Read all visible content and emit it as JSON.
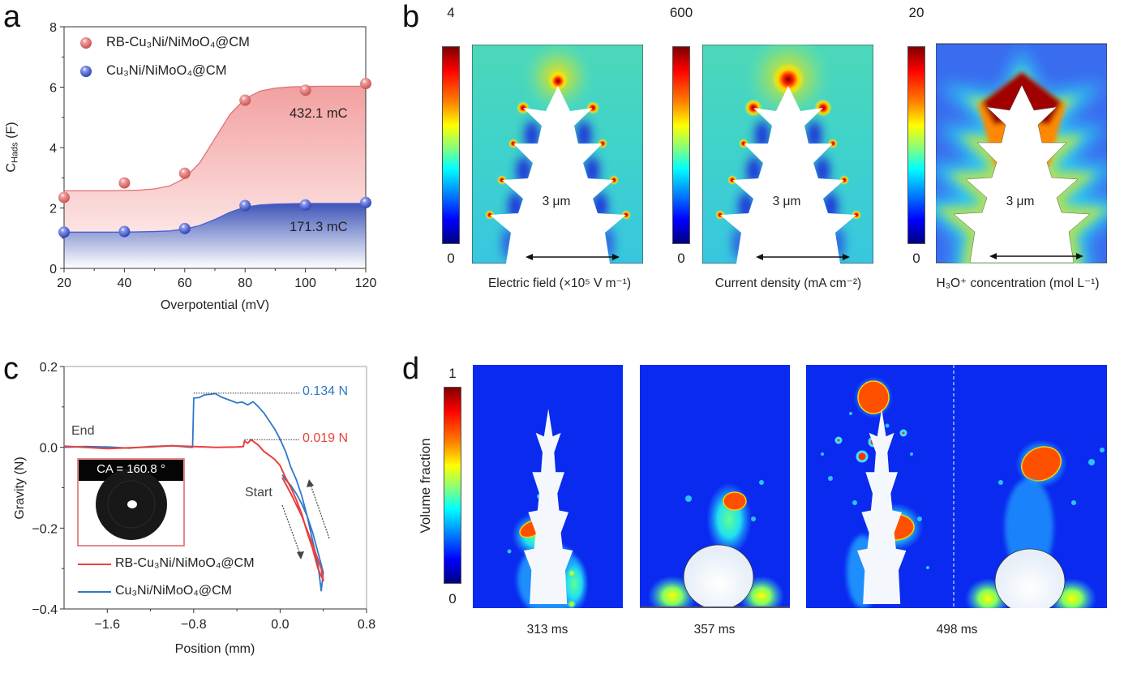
{
  "panels": {
    "a": "a",
    "b": "b",
    "c": "c",
    "d": "d"
  },
  "chart_data": [
    {
      "panel": "a",
      "type": "scatter",
      "xlabel": "Overpotential (mV)",
      "ylabel": {
        "main": "C",
        "sub": "Hads",
        "unit": " (F)"
      },
      "xlim": [
        20,
        120
      ],
      "ylim": [
        0,
        8
      ],
      "xticks": [
        "20",
        "40",
        "60",
        "80",
        "100",
        "120"
      ],
      "yticks": [
        "0",
        "2",
        "4",
        "6",
        "8"
      ],
      "legend_position": "top-left",
      "series": [
        {
          "name": "RB-Cu₃Ni/NiMoO₄@CM",
          "color": "#e07272",
          "x": [
            20,
            40,
            60,
            80,
            100,
            120
          ],
          "y": [
            2.35,
            2.83,
            3.15,
            5.57,
            5.9,
            6.12
          ],
          "fit_x": [
            20,
            25,
            30,
            35,
            40,
            45,
            50,
            55,
            60,
            65,
            70,
            75,
            80,
            85,
            90,
            95,
            100,
            105,
            110,
            115,
            120
          ],
          "fit_y": [
            2.57,
            2.57,
            2.57,
            2.57,
            2.58,
            2.59,
            2.63,
            2.73,
            2.98,
            3.5,
            4.3,
            5.1,
            5.62,
            5.87,
            5.97,
            6.01,
            6.02,
            6.03,
            6.03,
            6.03,
            6.03
          ],
          "annotation": "432.1 mC"
        },
        {
          "name": "Cu₃Ni/NiMoO₄@CM",
          "color": "#4a5fcf",
          "x": [
            20,
            40,
            60,
            80,
            100,
            120
          ],
          "y": [
            1.2,
            1.22,
            1.32,
            2.08,
            2.1,
            2.18
          ],
          "fit_x": [
            20,
            25,
            30,
            35,
            40,
            45,
            50,
            55,
            60,
            65,
            70,
            75,
            80,
            85,
            90,
            95,
            100,
            105,
            110,
            115,
            120
          ],
          "fit_y": [
            1.2,
            1.2,
            1.2,
            1.2,
            1.2,
            1.21,
            1.22,
            1.24,
            1.3,
            1.42,
            1.62,
            1.86,
            2.03,
            2.1,
            2.13,
            2.14,
            2.15,
            2.15,
            2.15,
            2.15,
            2.15
          ],
          "annotation": "171.3 mC"
        }
      ]
    },
    {
      "panel": "c",
      "type": "line",
      "xlabel": "Position (mm)",
      "ylabel": "Gravity (N)",
      "xlim": [
        -2.0,
        0.8
      ],
      "ylim": [
        -0.4,
        0.2
      ],
      "xticks": [
        "−1.6",
        "−0.8",
        "0.0",
        "0.8"
      ],
      "xtick_values": [
        -1.6,
        -0.8,
        0.0,
        0.8
      ],
      "yticks": [
        "0.2",
        "0.0",
        "−0.2",
        "−0.4"
      ],
      "ytick_values": [
        0.2,
        0.0,
        -0.2,
        -0.4
      ],
      "legend_position": "bottom-left",
      "series": [
        {
          "name": "RB-Cu₃Ni/NiMoO₄@CM",
          "color": "#e8413e",
          "x": [
            -2.0,
            -1.8,
            -1.6,
            -1.4,
            -1.2,
            -1.0,
            -0.8,
            -0.6,
            -0.4,
            -0.34,
            -0.33,
            -0.3,
            -0.27,
            -0.25,
            -0.2,
            -0.15,
            -0.1,
            -0.05,
            0.0,
            0.05,
            0.1,
            0.15,
            0.2,
            0.25,
            0.3,
            0.35,
            0.4,
            0.38,
            0.3,
            0.2,
            0.1,
            0.02
          ],
          "y": [
            0.003,
            0.0,
            -0.003,
            -0.001,
            0.001,
            0.004,
            0.002,
            0.0,
            0.001,
            0.002,
            0.016,
            0.01,
            0.019,
            0.015,
            0.005,
            -0.01,
            -0.02,
            -0.03,
            -0.045,
            -0.075,
            -0.1,
            -0.13,
            -0.165,
            -0.21,
            -0.25,
            -0.3,
            -0.33,
            -0.3,
            -0.24,
            -0.17,
            -0.115,
            -0.075
          ],
          "peak_label": "0.019 N",
          "peak_value": 0.019,
          "peak_from_x": -0.33
        },
        {
          "name": "Cu₃Ni/NiMoO₄@CM",
          "color": "#2f78c8",
          "x": [
            -2.0,
            -1.8,
            -1.6,
            -1.4,
            -1.2,
            -1.0,
            -0.82,
            -0.81,
            -0.8,
            -0.75,
            -0.7,
            -0.65,
            -0.6,
            -0.55,
            -0.5,
            -0.45,
            -0.4,
            -0.35,
            -0.3,
            -0.25,
            -0.2,
            -0.15,
            -0.1,
            -0.05,
            0.0,
            0.05,
            0.1,
            0.15,
            0.2,
            0.25,
            0.3,
            0.35,
            0.38,
            0.4,
            0.35,
            0.3,
            0.25,
            0.2,
            0.15,
            0.1,
            0.05,
            0.02
          ],
          "y": [
            0.0,
            0.002,
            0.001,
            -0.002,
            0.002,
            0.004,
            0.0,
            0.0,
            0.122,
            0.123,
            0.13,
            0.131,
            0.133,
            0.125,
            0.12,
            0.115,
            0.11,
            0.112,
            0.105,
            0.113,
            0.1,
            0.085,
            0.065,
            0.045,
            0.02,
            -0.01,
            -0.05,
            -0.08,
            -0.12,
            -0.17,
            -0.23,
            -0.29,
            -0.355,
            -0.31,
            -0.26,
            -0.21,
            -0.17,
            -0.14,
            -0.115,
            -0.095,
            -0.08,
            -0.068
          ],
          "peak_label": "0.134 N",
          "peak_value": 0.134,
          "peak_from_x": -0.8
        }
      ],
      "annotations": {
        "end": "End",
        "start": "Start"
      },
      "inset": {
        "label": "CA = 160.8 °",
        "border_color": "#e06060"
      }
    }
  ],
  "panel_b": {
    "maps": [
      {
        "max": "4",
        "min": "0",
        "scale_bar": "3 μm",
        "caption": "Electric field (×10⁵ V m⁻¹)"
      },
      {
        "max": "600",
        "min": "0",
        "scale_bar": "3 μm",
        "caption": "Current density (mA cm⁻²)"
      },
      {
        "max": "20",
        "min": "0",
        "scale_bar": "3 μm",
        "caption": "H₃O⁺ concentration (mol L⁻¹)"
      }
    ],
    "colormap": "jet"
  },
  "panel_d": {
    "colorbar": {
      "label": "Volume fraction",
      "max": "1",
      "min": "0"
    },
    "frames": [
      {
        "time": "313 ms"
      },
      {
        "time": "357 ms"
      },
      {
        "time": "498 ms"
      }
    ],
    "background_color": "#0a2af0"
  }
}
